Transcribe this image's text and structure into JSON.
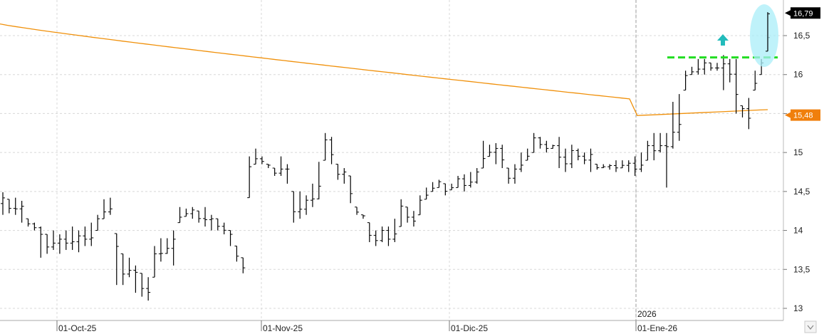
{
  "chart_data": {
    "type": "ohlc-bar",
    "y_axis": {
      "ticks": [
        "13",
        "13,5",
        "14",
        "14,5",
        "15",
        "15,5",
        "16",
        "16,5"
      ],
      "tick_values": [
        13,
        13.5,
        14,
        14.5,
        15,
        15.5,
        16,
        16.5
      ],
      "range": [
        12.95,
        16.9
      ],
      "position": "right"
    },
    "x_axis": {
      "labels": [
        "01-Oct-25",
        "01-Nov-25",
        "01-Dic-25",
        "01-Ene-26"
      ],
      "year_marker": "2026"
    },
    "last_price": {
      "value": 16.79,
      "label": "16,79",
      "color": "#000000"
    },
    "ma_price": {
      "value": 15.48,
      "label": "15,48",
      "color": "#f07f0c"
    },
    "moving_average": {
      "color": "#f0900a",
      "start": 16.65,
      "end": 15.5
    },
    "resistance_level": {
      "value": 16.22,
      "color": "#22dd22"
    },
    "annotations": {
      "arrow": "up-arrow",
      "arrow_color": "#22bbbb",
      "highlight_color": "#aaeef8"
    },
    "grid": true,
    "bars": [
      [
        14.49,
        14.2
      ],
      [
        14.4,
        14.22
      ],
      [
        14.42,
        14.2
      ],
      [
        14.38,
        14.1
      ],
      [
        14.15,
        14.05
      ],
      [
        14.1,
        14.0
      ],
      [
        14.05,
        13.65
      ],
      [
        13.95,
        13.7
      ],
      [
        14.0,
        13.75
      ],
      [
        13.95,
        13.7
      ],
      [
        14.0,
        13.75
      ],
      [
        14.05,
        13.75
      ],
      [
        14.0,
        13.72
      ],
      [
        14.05,
        13.8
      ],
      [
        14.1,
        13.8
      ],
      [
        14.2,
        14.0
      ],
      [
        14.4,
        14.15
      ],
      [
        14.42,
        14.2
      ],
      [
        13.96,
        13.3
      ],
      [
        13.7,
        13.3
      ],
      [
        13.65,
        13.4
      ],
      [
        13.55,
        13.2
      ],
      [
        13.45,
        13.15
      ],
      [
        13.4,
        13.1
      ],
      [
        13.8,
        13.4
      ],
      [
        13.9,
        13.6
      ],
      [
        13.9,
        13.7
      ],
      [
        14.0,
        13.55
      ],
      [
        14.3,
        14.1
      ],
      [
        14.28,
        14.18
      ],
      [
        14.3,
        14.15
      ],
      [
        14.25,
        14.1
      ],
      [
        14.3,
        14.05
      ],
      [
        14.2,
        14.0
      ],
      [
        14.15,
        14.0
      ],
      [
        14.1,
        13.95
      ],
      [
        14.0,
        13.8
      ],
      [
        13.8,
        13.6
      ],
      [
        13.65,
        13.45
      ],
      [
        14.95,
        14.42
      ],
      [
        15.05,
        14.85
      ],
      [
        14.95,
        14.85
      ],
      [
        14.85,
        14.8
      ],
      [
        14.8,
        14.7
      ],
      [
        14.95,
        14.7
      ],
      [
        14.85,
        14.6
      ],
      [
        14.5,
        14.1
      ],
      [
        14.5,
        14.15
      ],
      [
        14.45,
        14.2
      ],
      [
        14.6,
        14.3
      ],
      [
        14.88,
        14.4
      ],
      [
        15.25,
        14.9
      ],
      [
        15.2,
        14.85
      ],
      [
        14.85,
        14.65
      ],
      [
        14.8,
        14.6
      ],
      [
        14.7,
        14.35
      ],
      [
        14.3,
        14.2
      ],
      [
        14.2,
        14.15
      ],
      [
        14.1,
        13.85
      ],
      [
        14.0,
        13.8
      ],
      [
        14.05,
        13.85
      ],
      [
        14.05,
        13.8
      ],
      [
        14.15,
        13.85
      ],
      [
        14.4,
        14.05
      ],
      [
        14.3,
        14.1
      ],
      [
        14.25,
        14.05
      ],
      [
        14.45,
        14.2
      ],
      [
        14.55,
        14.4
      ],
      [
        14.62,
        14.5
      ],
      [
        14.65,
        14.55
      ],
      [
        14.6,
        14.45
      ],
      [
        14.6,
        14.52
      ],
      [
        14.7,
        14.55
      ],
      [
        14.72,
        14.5
      ],
      [
        14.75,
        14.55
      ],
      [
        14.8,
        14.6
      ],
      [
        15.15,
        14.8
      ],
      [
        15.1,
        14.95
      ],
      [
        15.12,
        14.85
      ],
      [
        15.1,
        14.8
      ],
      [
        14.8,
        14.6
      ],
      [
        14.85,
        14.6
      ],
      [
        15.0,
        14.75
      ],
      [
        15.05,
        14.9
      ],
      [
        15.25,
        15.0
      ],
      [
        15.2,
        15.05
      ],
      [
        15.15,
        15.0
      ],
      [
        15.1,
        15.05
      ],
      [
        15.2,
        14.8
      ],
      [
        15.05,
        14.75
      ],
      [
        15.1,
        14.8
      ],
      [
        15.05,
        14.9
      ],
      [
        15.0,
        14.85
      ],
      [
        15.05,
        14.75
      ],
      [
        14.85,
        14.78
      ],
      [
        14.85,
        14.8
      ],
      [
        14.85,
        14.78
      ],
      [
        14.9,
        14.75
      ],
      [
        14.9,
        14.8
      ],
      [
        14.9,
        14.75
      ],
      [
        14.95,
        14.7
      ],
      [
        15.0,
        14.75
      ],
      [
        15.15,
        14.9
      ],
      [
        15.25,
        14.9
      ],
      [
        15.25,
        15.0
      ],
      [
        15.25,
        14.55
      ],
      [
        15.65,
        15.05
      ],
      [
        15.75,
        15.15
      ],
      [
        16.05,
        15.8
      ],
      [
        16.1,
        16.0
      ],
      [
        16.2,
        16.0
      ],
      [
        16.2,
        16.0
      ],
      [
        16.15,
        16.05
      ],
      [
        16.15,
        16.05
      ],
      [
        16.25,
        15.8
      ],
      [
        16.2,
        15.9
      ],
      [
        16.2,
        15.5
      ],
      [
        15.6,
        15.45
      ],
      [
        15.7,
        15.3
      ],
      [
        16.05,
        15.8
      ],
      [
        16.2,
        16.0
      ],
      [
        16.8,
        16.3
      ]
    ]
  }
}
